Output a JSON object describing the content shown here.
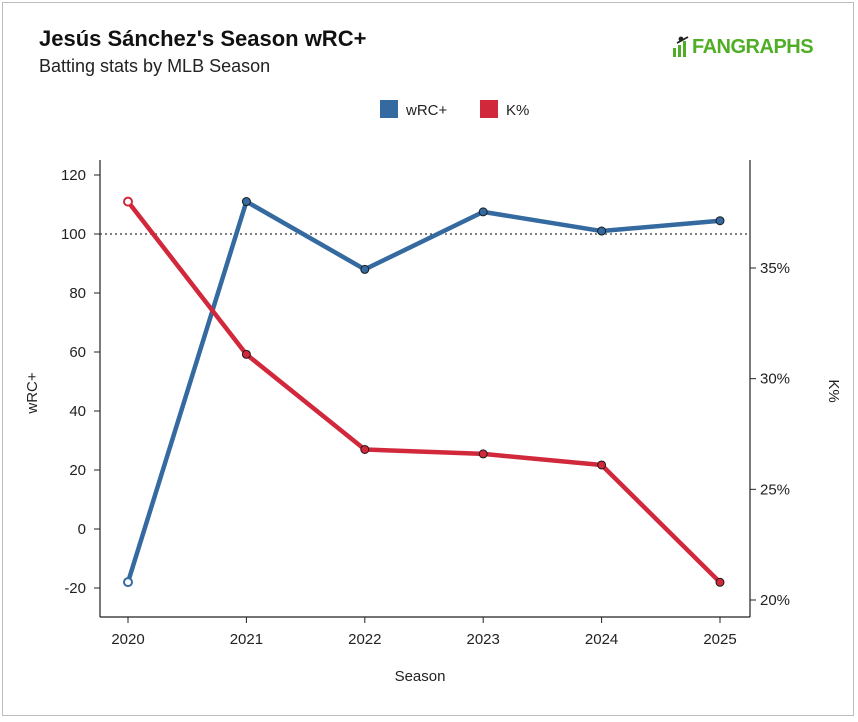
{
  "header": {
    "title": "Jesús Sánchez's Season wRC+",
    "subtitle": "Batting stats by MLB Season",
    "logo_text": "FANGRAPHS",
    "logo_color": "#50ae26"
  },
  "chart_data": {
    "type": "line",
    "categories": [
      "2020",
      "2021",
      "2022",
      "2023",
      "2024",
      "2025"
    ],
    "series": [
      {
        "name": "wRC+",
        "axis": "left",
        "color": "#346a9f",
        "values": [
          -18,
          111,
          88,
          107.5,
          101,
          104.5
        ]
      },
      {
        "name": "K%",
        "axis": "right",
        "color": "#d1283b",
        "values": [
          38.0,
          31.1,
          26.8,
          26.6,
          26.1,
          20.8
        ]
      }
    ],
    "xlabel": "Season",
    "ylabel_left": "wRC+",
    "ylabel_right": "K%",
    "ylim_left": [
      -30,
      125
    ],
    "yticks_left": [
      120,
      100,
      80,
      60,
      40,
      20,
      0,
      -20
    ],
    "ylim_right": [
      19.5,
      40.5
    ],
    "yticks_right": [
      35,
      30,
      25,
      20
    ],
    "ytick_right_suffix": "%",
    "reference_line": {
      "axis": "left",
      "value": 100,
      "style": "dotted"
    },
    "legend_position": "top-center",
    "grid": false
  }
}
